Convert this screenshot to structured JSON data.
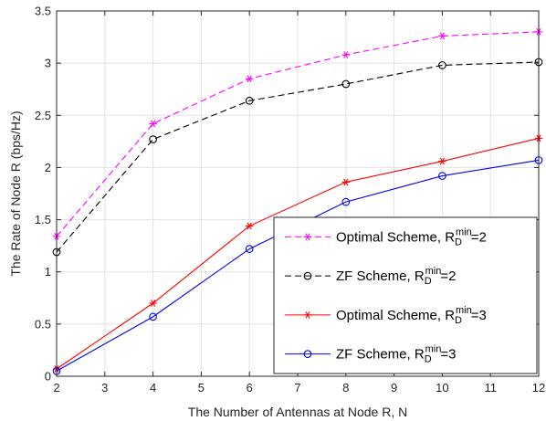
{
  "chart_data": {
    "type": "line",
    "xlabel": "The Number of Antennas at Node R, N",
    "ylabel": "The Rate of Node R (bps/Hz)",
    "xlim": [
      2,
      12
    ],
    "ylim": [
      0,
      3.5
    ],
    "xticks": [
      "2",
      "3",
      "4",
      "5",
      "6",
      "7",
      "8",
      "9",
      "10",
      "11",
      "12"
    ],
    "yticks": [
      "0",
      "0.5",
      "1",
      "1.5",
      "2",
      "2.5",
      "3",
      "3.5"
    ],
    "grid": true,
    "legend_position": "bottom-right",
    "x": [
      2,
      4,
      6,
      8,
      10,
      12
    ],
    "series": [
      {
        "name": "Optimal Scheme, R",
        "sub": "D",
        "sup": "min",
        "suffix": "=2",
        "values": [
          1.34,
          2.42,
          2.85,
          3.08,
          3.26,
          3.3
        ],
        "color": "#ff00ff",
        "dash": "dashed",
        "marker": "asterisk"
      },
      {
        "name": "ZF Scheme, R",
        "sub": "D",
        "sup": "min",
        "suffix": "=2",
        "values": [
          1.19,
          2.27,
          2.64,
          2.8,
          2.98,
          3.01
        ],
        "color": "#000000",
        "dash": "dashed",
        "marker": "circle"
      },
      {
        "name": "Optimal Scheme, R",
        "sub": "D",
        "sup": "min",
        "suffix": "=3",
        "values": [
          0.07,
          0.7,
          1.44,
          1.86,
          2.06,
          2.28
        ],
        "color": "#ff0000",
        "dash": "solid",
        "marker": "asterisk"
      },
      {
        "name": "ZF Scheme, R",
        "sub": "D",
        "sup": "min",
        "suffix": "=3",
        "values": [
          0.05,
          0.57,
          1.22,
          1.67,
          1.92,
          2.07
        ],
        "color": "#0000ff",
        "dash": "solid",
        "marker": "circle"
      }
    ]
  }
}
